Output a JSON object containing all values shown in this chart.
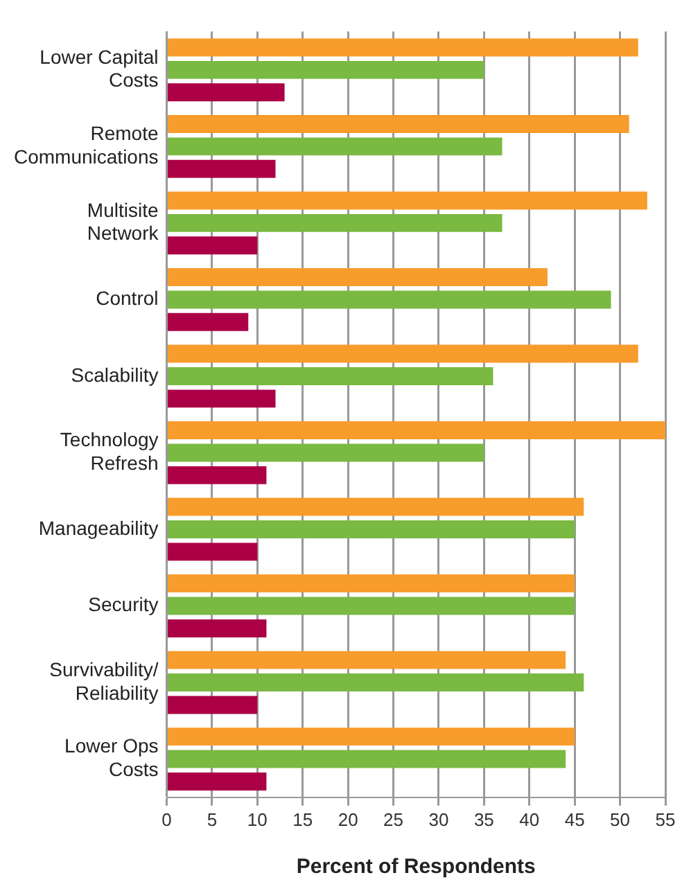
{
  "chart_data": {
    "type": "bar",
    "orientation": "horizontal",
    "xlabel": "Percent of Respondents",
    "categories": [
      "Lower Capital\nCosts",
      "Remote\nCommunications",
      "Multisite\nNetwork",
      "Control",
      "Scalability",
      "Technology\nRefresh",
      "Manageability",
      "Security",
      "Survivability/\nReliability",
      "Lower Ops\nCosts"
    ],
    "series": [
      {
        "color": "#f89c2c",
        "values": [
          52,
          51,
          53,
          42,
          52,
          55,
          46,
          45,
          44,
          45
        ]
      },
      {
        "color": "#7ab942",
        "values": [
          35,
          37,
          37,
          49,
          36,
          35,
          45,
          45,
          46,
          44
        ]
      },
      {
        "color": "#ac0046",
        "values": [
          13,
          12,
          10,
          9,
          12,
          11,
          10,
          11,
          10,
          11
        ]
      }
    ],
    "xlim": [
      0,
      55
    ],
    "xticks": [
      0,
      5,
      10,
      15,
      20,
      25,
      30,
      35,
      40,
      45,
      50,
      55
    ],
    "grid": "x",
    "legend": false
  }
}
